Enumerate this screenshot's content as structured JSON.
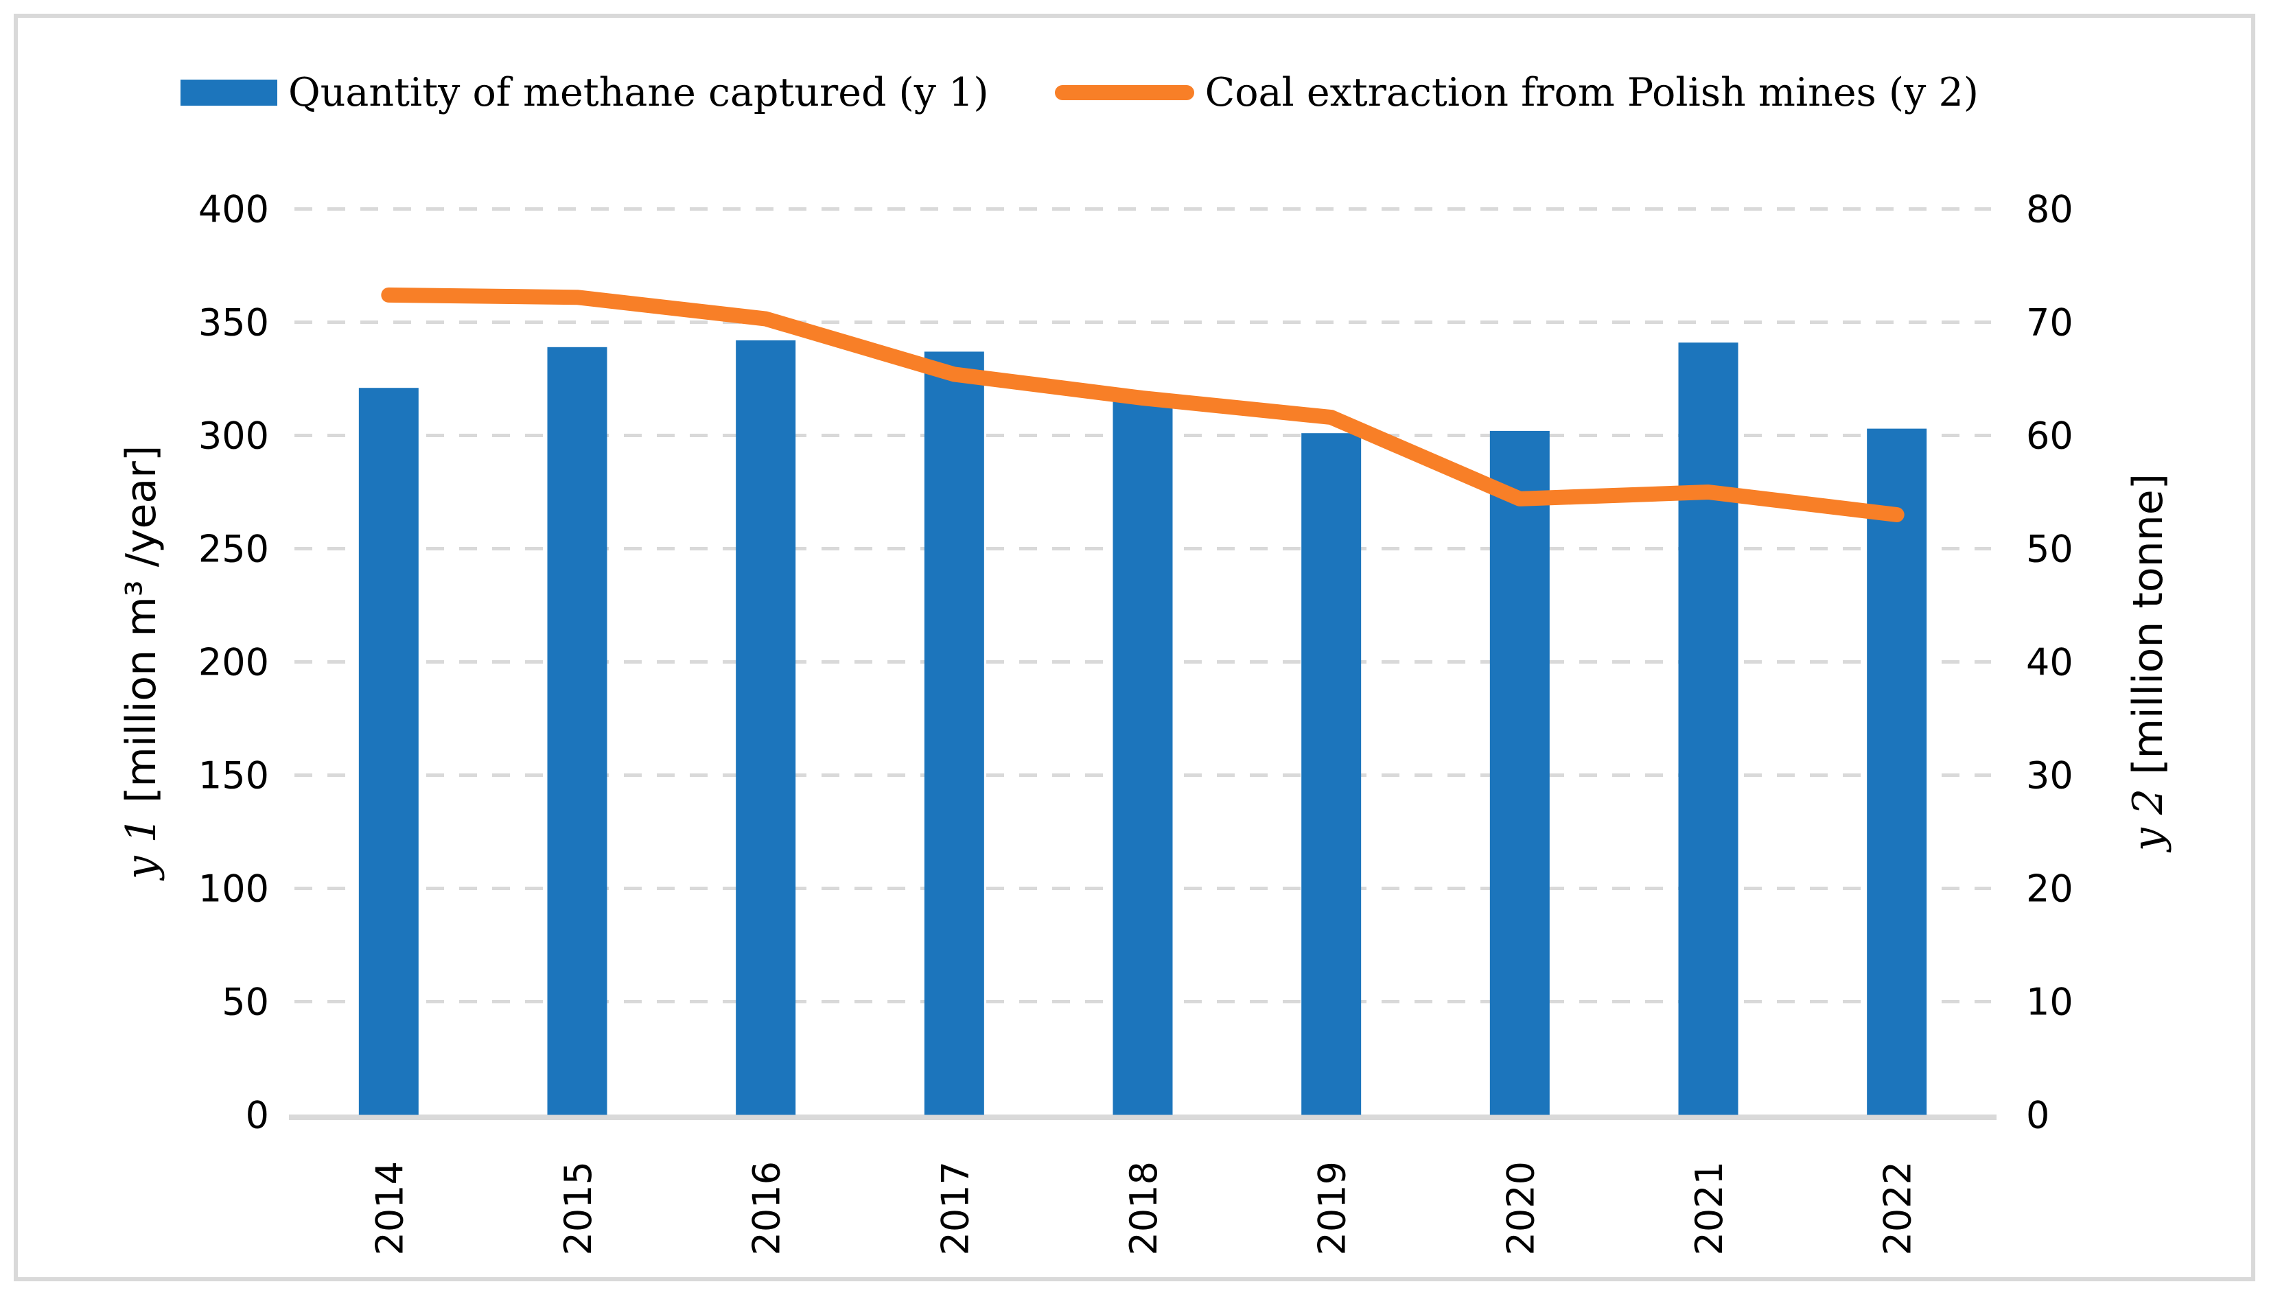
{
  "figure": {
    "background": "#FFFFFF",
    "border_color": "#D9D9D9"
  },
  "legend": {
    "position": "top-center",
    "items": [
      {
        "label": "Quantity of methane captured (y 1)",
        "marker": "bar-swatch",
        "color": "#1C75BC"
      },
      {
        "label": "Coal extraction from Polish mines (y 2)",
        "marker": "line-swatch",
        "color": "#F87F27"
      }
    ]
  },
  "chart_data": {
    "type": "combo",
    "categories": [
      "2014",
      "2015",
      "2016",
      "2017",
      "2018",
      "2019",
      "2020",
      "2021",
      "2022"
    ],
    "series": [
      {
        "name": "Quantity of methane captured (y 1)",
        "type": "bar",
        "axis": "y1",
        "color": "#1C75BC",
        "values": [
          321,
          339,
          342,
          337,
          315,
          301,
          302,
          341,
          303
        ]
      },
      {
        "name": "Coal extraction from Polish mines (y 2)",
        "type": "line",
        "axis": "y2",
        "color": "#F87F27",
        "values": [
          72.4,
          72.2,
          70.3,
          65.4,
          63.3,
          61.6,
          54.4,
          55.0,
          53.0
        ]
      }
    ],
    "y1_axis": {
      "title_var": "y 1",
      "title_unit": "[million m³ /year]",
      "min": 0,
      "max": 400,
      "step": 50,
      "tick_labels": [
        "0",
        "50",
        "100",
        "150",
        "200",
        "250",
        "300",
        "350",
        "400"
      ]
    },
    "y2_axis": {
      "title_var": "y 2",
      "title_unit": "[million tonne]",
      "min": 0,
      "max": 80,
      "step": 10,
      "tick_labels": [
        "0",
        "10",
        "20",
        "30",
        "40",
        "50",
        "60",
        "70",
        "80"
      ]
    },
    "x_axis": {
      "label_rotation_deg": -90
    },
    "grid": {
      "horizontal": true,
      "style": "dashed",
      "color": "#D9D9D9"
    },
    "axis_line_color": "#D9D9D9",
    "tick_label_color": "#000000"
  }
}
